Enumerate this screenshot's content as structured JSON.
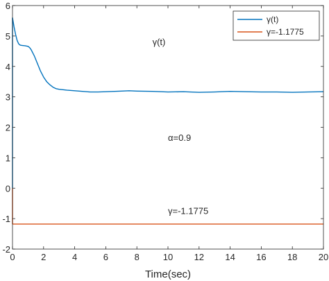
{
  "chart_data": {
    "type": "line",
    "title": "",
    "xlabel": "Time(sec)",
    "ylabel": "",
    "xlim": [
      0,
      20
    ],
    "ylim": [
      -2,
      6
    ],
    "xticks": [
      0,
      2,
      4,
      6,
      8,
      10,
      12,
      14,
      16,
      18,
      20
    ],
    "yticks": [
      -2,
      -1,
      0,
      1,
      2,
      3,
      4,
      5,
      6
    ],
    "grid": false,
    "legend": {
      "position": "top-right",
      "entries": [
        "γ(t)",
        "γ=-1.1775"
      ]
    },
    "series": [
      {
        "name": "γ(t)",
        "color": "#0072bd",
        "x": [
          0,
          0.05,
          0.1,
          0.2,
          0.3,
          0.4,
          0.5,
          0.6,
          0.8,
          1.0,
          1.1,
          1.2,
          1.4,
          1.6,
          1.8,
          2.0,
          2.2,
          2.4,
          2.6,
          2.8,
          3.0,
          3.5,
          4.0,
          4.5,
          5.0,
          5.5,
          6.0,
          7.0,
          7.5,
          8.0,
          9.0,
          10.0,
          11.0,
          12.0,
          13.0,
          14.0,
          15.0,
          16.0,
          17.0,
          18.0,
          19.0,
          20.0
        ],
        "y": [
          5.6,
          5.45,
          5.3,
          5.05,
          4.85,
          4.74,
          4.7,
          4.69,
          4.68,
          4.66,
          4.62,
          4.55,
          4.35,
          4.1,
          3.85,
          3.65,
          3.5,
          3.4,
          3.32,
          3.27,
          3.25,
          3.22,
          3.2,
          3.18,
          3.16,
          3.16,
          3.17,
          3.19,
          3.2,
          3.19,
          3.18,
          3.16,
          3.17,
          3.15,
          3.16,
          3.18,
          3.17,
          3.16,
          3.16,
          3.15,
          3.16,
          3.17
        ]
      },
      {
        "name": "γ=-1.1775",
        "color": "#d95319",
        "x": [
          0,
          20
        ],
        "y": [
          -1.1775,
          -1.1775
        ]
      }
    ],
    "annotations": [
      {
        "text": "γ(t)",
        "x": 9.0,
        "y": 4.7
      },
      {
        "text": "α=0.9",
        "x": 10.0,
        "y": 1.55
      },
      {
        "text": "γ=-1.1775",
        "x": 10.0,
        "y": -0.85
      }
    ]
  }
}
